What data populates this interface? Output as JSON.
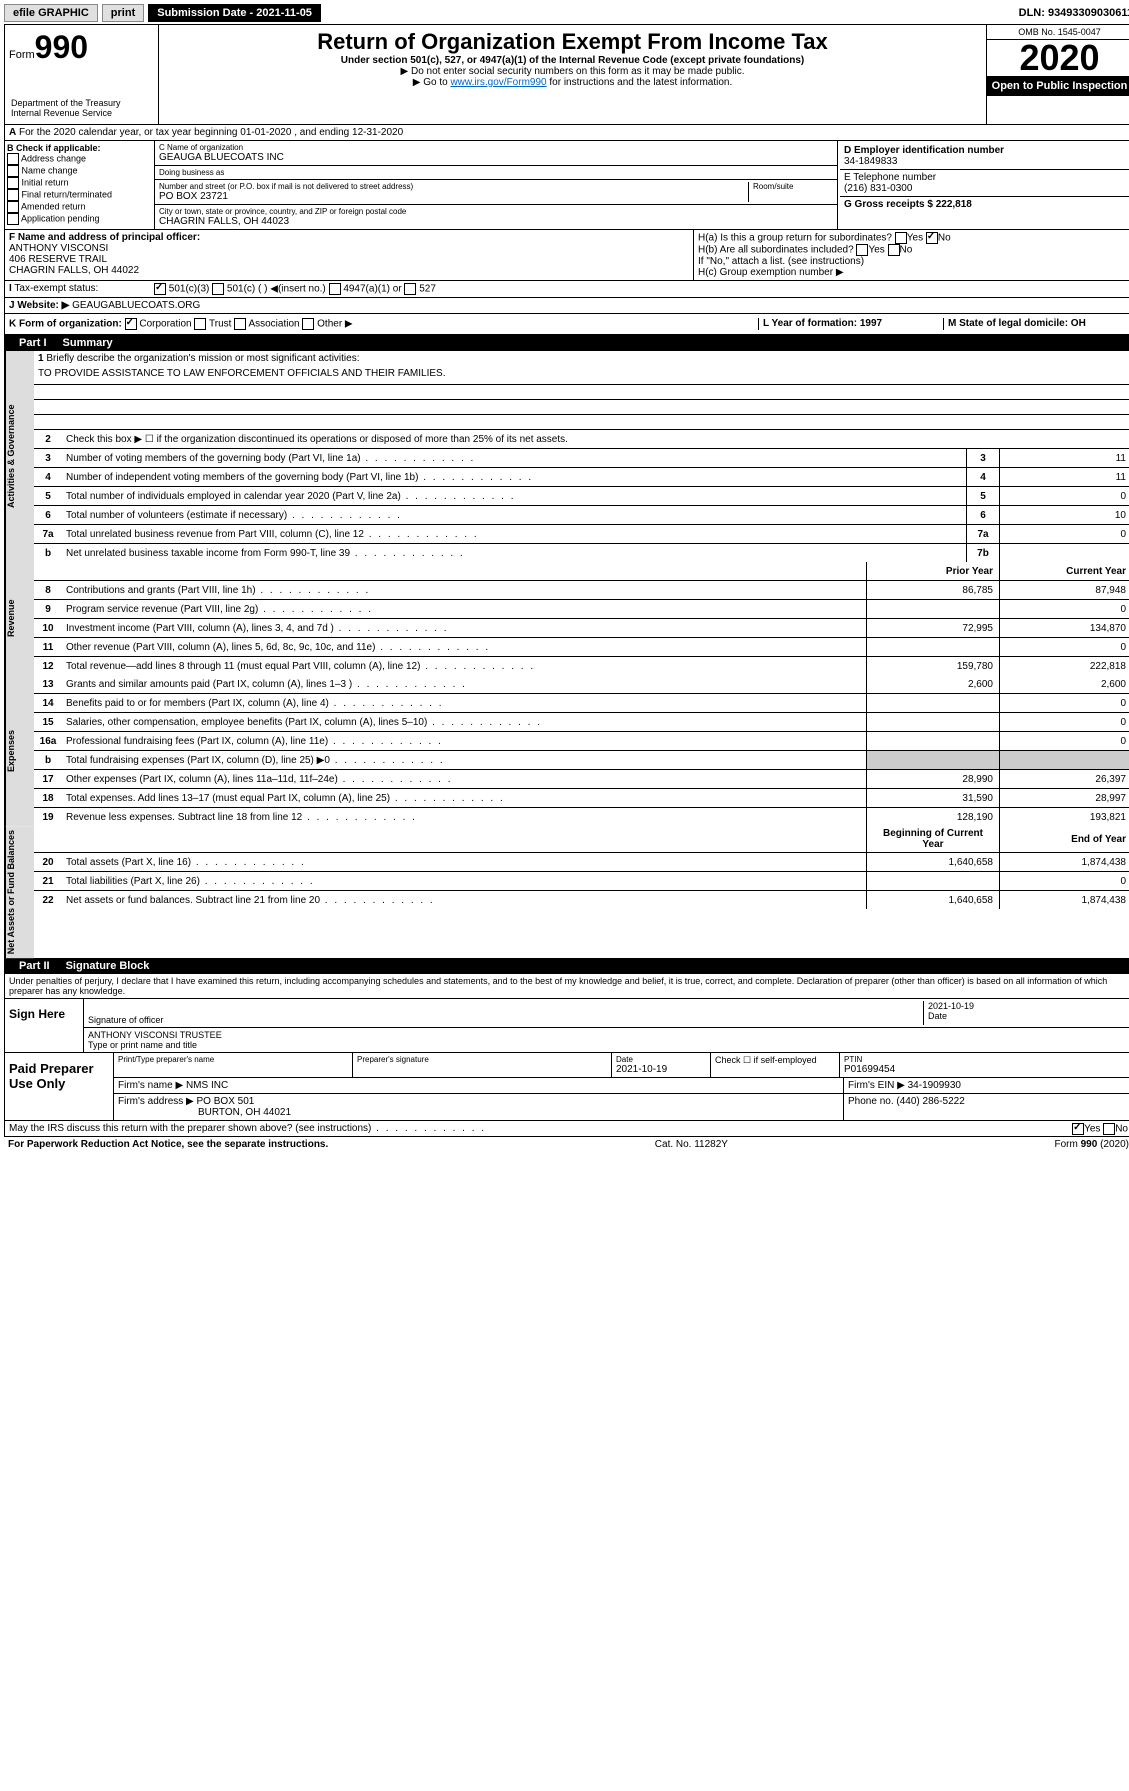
{
  "topbar": {
    "efile": "efile GRAPHIC",
    "print": "print",
    "submission": "Submission Date - 2021-11-05",
    "dln": "DLN: 93493309030611"
  },
  "header": {
    "form_prefix": "Form",
    "form_number": "990",
    "title": "Return of Organization Exempt From Income Tax",
    "subtitle": "Under section 501(c), 527, or 4947(a)(1) of the Internal Revenue Code (except private foundations)",
    "instruction1": "▶ Do not enter social security numbers on this form as it may be made public.",
    "instruction2_prefix": "▶ Go to ",
    "instruction2_link": "www.irs.gov/Form990",
    "instruction2_suffix": " for instructions and the latest information.",
    "omb": "OMB No. 1545-0047",
    "year": "2020",
    "open_public": "Open to Public Inspection",
    "dept": "Department of the Treasury Internal Revenue Service"
  },
  "row_a": "For the 2020 calendar year, or tax year beginning 01-01-2020    , and ending 12-31-2020",
  "section_b": {
    "label": "B Check if applicable:",
    "items": [
      "Address change",
      "Name change",
      "Initial return",
      "Final return/terminated",
      "Amended return",
      "Application pending"
    ]
  },
  "section_c": {
    "name_label": "C Name of organization",
    "name": "GEAUGA BLUECOATS INC",
    "dba_label": "Doing business as",
    "address_label": "Number and street (or P.O. box if mail is not delivered to street address)",
    "room_label": "Room/suite",
    "address": "PO BOX 23721",
    "city_label": "City or town, state or province, country, and ZIP or foreign postal code",
    "city": "CHAGRIN FALLS, OH  44023"
  },
  "section_d": {
    "ein_label": "D Employer identification number",
    "ein": "34-1849833",
    "phone_label": "E Telephone number",
    "phone": "(216) 831-0300",
    "gross_label": "G Gross receipts $ 222,818"
  },
  "section_f": {
    "label": "F  Name and address of principal officer:",
    "name": "ANTHONY VISCONSI",
    "addr1": "406 RESERVE TRAIL",
    "addr2": "CHAGRIN FALLS, OH  44022"
  },
  "section_h": {
    "ha": "H(a)  Is this a group return for subordinates?",
    "hb": "H(b)  Are all subordinates included?",
    "hb_note": "If \"No,\" attach a list. (see instructions)",
    "hc": "H(c)  Group exemption number ▶"
  },
  "tax_status": {
    "label": "Tax-exempt status:",
    "opt1": "501(c)(3)",
    "opt2": "501(c) (   ) ◀(insert no.)",
    "opt3": "4947(a)(1) or",
    "opt4": "527"
  },
  "website": {
    "label": "Website: ▶",
    "value": "GEAUGABLUECOATS.ORG"
  },
  "section_k": {
    "label": "K Form of organization:",
    "opts": [
      "Corporation",
      "Trust",
      "Association",
      "Other ▶"
    ]
  },
  "section_l": {
    "label": "L Year of formation: 1997"
  },
  "section_m": {
    "label": "M State of legal domicile: OH"
  },
  "part1": {
    "label": "Part I",
    "title": "Summary",
    "line1_label": "Briefly describe the organization's mission or most significant activities:",
    "line1_text": "TO PROVIDE ASSISTANCE TO LAW ENFORCEMENT OFFICIALS AND THEIR FAMILIES.",
    "line2": "Check this box ▶ ☐  if the organization discontinued its operations or disposed of more than 25% of its net assets.",
    "lines": [
      {
        "n": "3",
        "d": "Number of voting members of the governing body (Part VI, line 1a)",
        "box": "3",
        "v": "11"
      },
      {
        "n": "4",
        "d": "Number of independent voting members of the governing body (Part VI, line 1b)",
        "box": "4",
        "v": "11"
      },
      {
        "n": "5",
        "d": "Total number of individuals employed in calendar year 2020 (Part V, line 2a)",
        "box": "5",
        "v": "0"
      },
      {
        "n": "6",
        "d": "Total number of volunteers (estimate if necessary)",
        "box": "6",
        "v": "10"
      },
      {
        "n": "7a",
        "d": "Total unrelated business revenue from Part VIII, column (C), line 12",
        "box": "7a",
        "v": "0"
      },
      {
        "n": "b",
        "d": "Net unrelated business taxable income from Form 990-T, line 39",
        "box": "7b",
        "v": ""
      }
    ],
    "col_prior": "Prior Year",
    "col_current": "Current Year",
    "revenue": [
      {
        "n": "8",
        "d": "Contributions and grants (Part VIII, line 1h)",
        "p": "86,785",
        "c": "87,948"
      },
      {
        "n": "9",
        "d": "Program service revenue (Part VIII, line 2g)",
        "p": "",
        "c": "0"
      },
      {
        "n": "10",
        "d": "Investment income (Part VIII, column (A), lines 3, 4, and 7d )",
        "p": "72,995",
        "c": "134,870"
      },
      {
        "n": "11",
        "d": "Other revenue (Part VIII, column (A), lines 5, 6d, 8c, 9c, 10c, and 11e)",
        "p": "",
        "c": "0"
      },
      {
        "n": "12",
        "d": "Total revenue—add lines 8 through 11 (must equal Part VIII, column (A), line 12)",
        "p": "159,780",
        "c": "222,818"
      }
    ],
    "expenses": [
      {
        "n": "13",
        "d": "Grants and similar amounts paid (Part IX, column (A), lines 1–3 )",
        "p": "2,600",
        "c": "2,600"
      },
      {
        "n": "14",
        "d": "Benefits paid to or for members (Part IX, column (A), line 4)",
        "p": "",
        "c": "0"
      },
      {
        "n": "15",
        "d": "Salaries, other compensation, employee benefits (Part IX, column (A), lines 5–10)",
        "p": "",
        "c": "0"
      },
      {
        "n": "16a",
        "d": "Professional fundraising fees (Part IX, column (A), line 11e)",
        "p": "",
        "c": "0"
      },
      {
        "n": "b",
        "d": "Total fundraising expenses (Part IX, column (D), line 25) ▶0",
        "p": "",
        "c": "",
        "shaded": true
      },
      {
        "n": "17",
        "d": "Other expenses (Part IX, column (A), lines 11a–11d, 11f–24e)",
        "p": "28,990",
        "c": "26,397"
      },
      {
        "n": "18",
        "d": "Total expenses. Add lines 13–17 (must equal Part IX, column (A), line 25)",
        "p": "31,590",
        "c": "28,997"
      },
      {
        "n": "19",
        "d": "Revenue less expenses. Subtract line 18 from line 12",
        "p": "128,190",
        "c": "193,821"
      }
    ],
    "col_begin": "Beginning of Current Year",
    "col_end": "End of Year",
    "assets": [
      {
        "n": "20",
        "d": "Total assets (Part X, line 16)",
        "p": "1,640,658",
        "c": "1,874,438"
      },
      {
        "n": "21",
        "d": "Total liabilities (Part X, line 26)",
        "p": "",
        "c": "0"
      },
      {
        "n": "22",
        "d": "Net assets or fund balances. Subtract line 21 from line 20",
        "p": "1,640,658",
        "c": "1,874,438"
      }
    ]
  },
  "part2": {
    "label": "Part II",
    "title": "Signature Block",
    "perjury": "Under penalties of perjury, I declare that I have examined this return, including accompanying schedules and statements, and to the best of my knowledge and belief, it is true, correct, and complete. Declaration of preparer (other than officer) is based on all information of which preparer has any knowledge."
  },
  "sign": {
    "label": "Sign Here",
    "sig_label": "Signature of officer",
    "date": "2021-10-19",
    "date_label": "Date",
    "name": "ANTHONY VISCONSI  TRUSTEE",
    "name_label": "Type or print name and title"
  },
  "paid": {
    "label": "Paid Preparer Use Only",
    "preparer_label": "Print/Type preparer's name",
    "sig_label": "Preparer's signature",
    "date_label": "Date",
    "date": "2021-10-19",
    "check_label": "Check ☐ if self-employed",
    "ptin_label": "PTIN",
    "ptin": "P01699454",
    "firm_label": "Firm's name    ▶",
    "firm": "NMS INC",
    "firm_ein_label": "Firm's EIN ▶",
    "firm_ein": "34-1909930",
    "addr_label": "Firm's address ▶",
    "addr": "PO BOX 501",
    "addr2": "BURTON, OH  44021",
    "phone_label": "Phone no.",
    "phone": "(440) 286-5222"
  },
  "discuss": "May the IRS discuss this return with the preparer shown above? (see instructions)",
  "footer": {
    "paperwork": "For Paperwork Reduction Act Notice, see the separate instructions.",
    "cat": "Cat. No. 11282Y",
    "form": "Form 990 (2020)"
  },
  "vlabels": {
    "gov": "Activities & Governance",
    "rev": "Revenue",
    "exp": "Expenses",
    "net": "Net Assets or Fund Balances"
  }
}
